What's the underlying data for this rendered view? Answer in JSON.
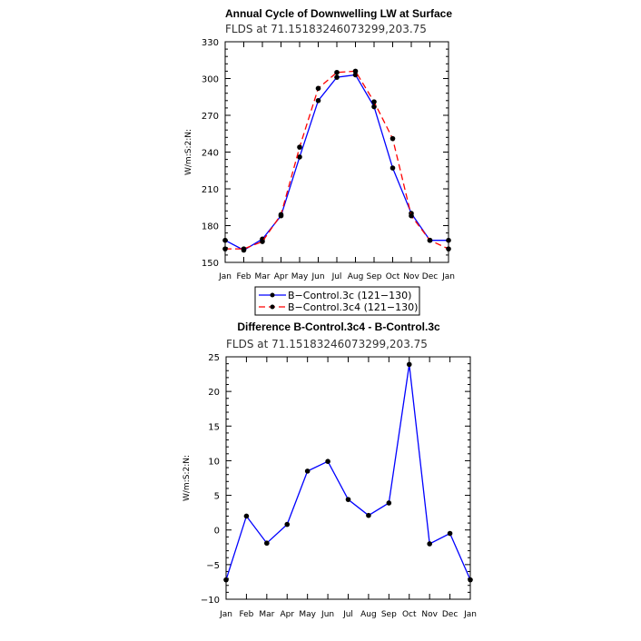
{
  "chart_data": [
    {
      "type": "line",
      "title": "Annual Cycle of Downwelling LW at Surface",
      "subtitle": "FLDS at 71.15183246073299,203.75",
      "xlabel": "",
      "ylabel": "W/m:S:2:N:",
      "categories": [
        "Jan",
        "Feb",
        "Mar",
        "Apr",
        "May",
        "Jun",
        "Jul",
        "Aug",
        "Sep",
        "Oct",
        "Nov",
        "Dec",
        "Jan"
      ],
      "ylim": [
        150,
        330
      ],
      "yticks": [
        150,
        180,
        210,
        240,
        270,
        300,
        330
      ],
      "series": [
        {
          "name": "B−Control.3c (121−130)",
          "color": "#0000ff",
          "dash": "solid",
          "values": [
            168,
            160,
            169,
            188,
            236,
            282,
            301,
            303,
            277,
            227,
            190,
            168,
            168
          ]
        },
        {
          "name": "B−Control.3c4 (121−130)",
          "color": "#ff0000",
          "dash": "dashed",
          "values": [
            161,
            161,
            167,
            189,
            244,
            292,
            305,
            306,
            281,
            251,
            188,
            168,
            161
          ]
        }
      ],
      "legend": "below"
    },
    {
      "type": "line",
      "title": "Difference B-Control.3c4 - B-Control.3c",
      "subtitle": "FLDS at 71.15183246073299,203.75",
      "xlabel": "",
      "ylabel": "W/m:S:2:N:",
      "categories": [
        "Jan",
        "Feb",
        "Mar",
        "Apr",
        "May",
        "Jun",
        "Jul",
        "Aug",
        "Sep",
        "Oct",
        "Nov",
        "Dec",
        "Jan"
      ],
      "ylim": [
        -10,
        25
      ],
      "yticks": [
        -10,
        -5,
        0,
        5,
        10,
        15,
        20,
        25
      ],
      "series": [
        {
          "color": "#0000ff",
          "values": [
            -7.2,
            2.0,
            -1.9,
            0.8,
            8.5,
            9.9,
            4.4,
            2.1,
            3.9,
            23.9,
            -2.0,
            -0.5,
            -7.2
          ]
        }
      ]
    }
  ]
}
